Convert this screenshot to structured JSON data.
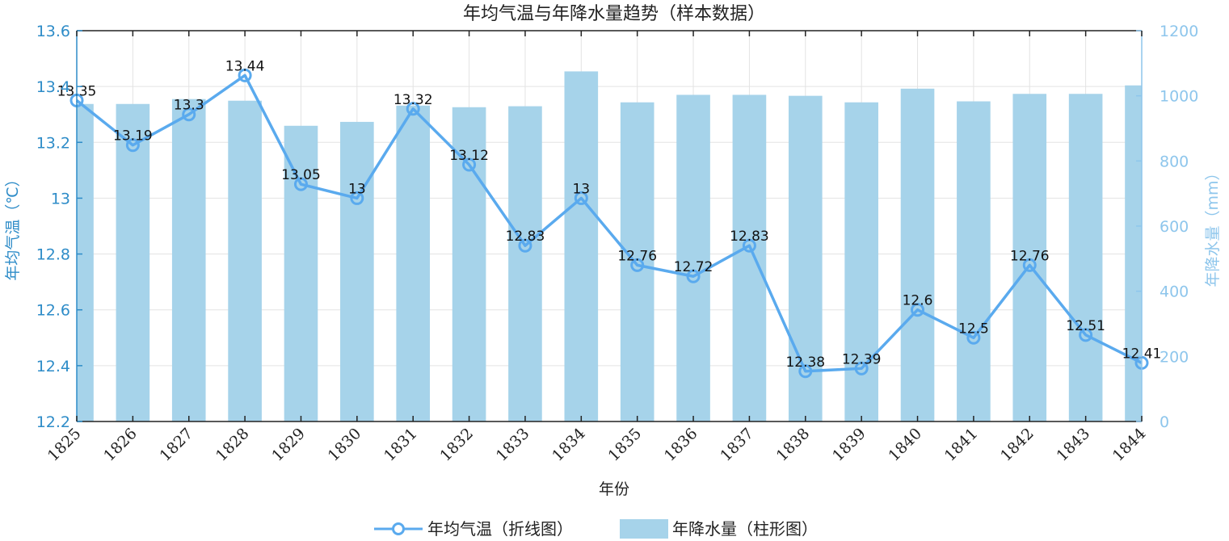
{
  "chart_data": {
    "type": "bar+line",
    "title": "年均气温与年降水量趋势（样本数据）",
    "xlabel": "年份",
    "ylabel_left": "年均气温（℃）",
    "ylabel_right": "年降水量（mm）",
    "categories": [
      "1825",
      "1826",
      "1827",
      "1828",
      "1829",
      "1830",
      "1831",
      "1832",
      "1833",
      "1834",
      "1835",
      "1836",
      "1837",
      "1838",
      "1839",
      "1840",
      "1841",
      "1842",
      "1843",
      "1844"
    ],
    "ylim_left": [
      12.2,
      13.6
    ],
    "yticks_left": [
      "12.2",
      "12.4",
      "12.6",
      "12.8",
      "13",
      "13.2",
      "13.4",
      "13.6"
    ],
    "ylim_right": [
      0,
      1200
    ],
    "yticks_right": [
      "0",
      "200",
      "400",
      "600",
      "800",
      "1000",
      "1200"
    ],
    "grid": true,
    "legend_position": "bottom",
    "series": [
      {
        "name": "年均气温（折线图）",
        "type": "line",
        "axis": "left",
        "values": [
          13.35,
          13.19,
          13.3,
          13.44,
          13.05,
          13.0,
          13.32,
          13.12,
          12.83,
          13.0,
          12.76,
          12.72,
          12.83,
          12.38,
          12.39,
          12.6,
          12.5,
          12.76,
          12.51,
          12.41
        ],
        "labels": [
          "13.35",
          "13.19",
          "13.3",
          "13.44",
          "13.05",
          "13",
          "13.32",
          "13.12",
          "12.83",
          "13",
          "12.76",
          "12.72",
          "12.83",
          "12.38",
          "12.39",
          "12.6",
          "12.5",
          "12.76",
          "12.51",
          "12.41"
        ]
      },
      {
        "name": "年降水量（柱形图）",
        "type": "bar",
        "axis": "right",
        "values": [
          975,
          975,
          990,
          985,
          908,
          920,
          970,
          965,
          968,
          1075,
          980,
          1003,
          1003,
          1000,
          980,
          1022,
          983,
          1006,
          1006,
          1032
        ]
      }
    ],
    "colors": {
      "line": "#5aaaee",
      "bar": "#a6d3ea",
      "left_axis": "#2e8cc8",
      "right_axis": "#8ec6ec"
    }
  }
}
